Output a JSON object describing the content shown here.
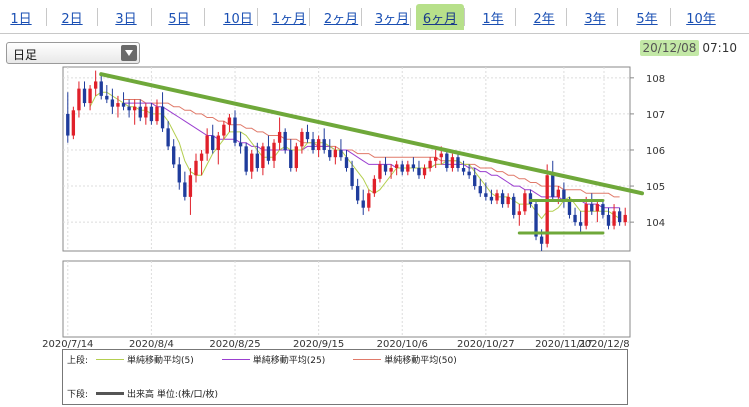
{
  "tabs": [
    {
      "label": "1日",
      "active": false
    },
    {
      "label": "2日",
      "active": false
    },
    {
      "label": "3日",
      "active": false
    },
    {
      "label": "5日",
      "active": false
    },
    {
      "label": "10日",
      "active": false
    },
    {
      "label": "1ヶ月",
      "active": false
    },
    {
      "label": "2ヶ月",
      "active": false
    },
    {
      "label": "3ヶ月",
      "active": false
    },
    {
      "label": "6ヶ月",
      "active": true
    },
    {
      "label": "1年",
      "active": false
    },
    {
      "label": "2年",
      "active": false
    },
    {
      "label": "3年",
      "active": false
    },
    {
      "label": "5年",
      "active": false
    },
    {
      "label": "10年",
      "active": false
    }
  ],
  "interval_select": {
    "value": "日足"
  },
  "timestamp": {
    "date": "20/12/08",
    "time": "07:10"
  },
  "legend": {
    "upper_label": "上段:",
    "lower_label": "下段:",
    "ma5": "単純移動平均(5)",
    "ma25": "単純移動平均(25)",
    "ma50": "単純移動平均(50)",
    "volume": "出来高 単位:(株/口/枚)"
  },
  "colors": {
    "up": "#e0202a",
    "down": "#1f3c9c",
    "ma5": "#b4cf50",
    "ma25": "#9b3fd0",
    "ma50": "#e07a6a",
    "trendline": "#6fa83a",
    "active_tab": "#b7e08a",
    "timestamp_bg": "#c3e8a6"
  },
  "chart_data": {
    "type": "candlestick",
    "ylim": [
      103.2,
      108.3
    ],
    "y_ticks": [
      104,
      105,
      106,
      107,
      108
    ],
    "x_ticks": [
      "2020/7/14",
      "2020/8/4",
      "2020/8/25",
      "2020/9/15",
      "2020/10/6",
      "2020/10/27",
      "2020/11/17",
      "2020/12/8"
    ],
    "grid": true,
    "candles": [
      [
        107.0,
        107.6,
        106.2,
        106.4
      ],
      [
        106.4,
        107.2,
        106.3,
        107.1
      ],
      [
        107.1,
        107.9,
        106.9,
        107.7
      ],
      [
        107.7,
        107.9,
        107.2,
        107.3
      ],
      [
        107.3,
        107.8,
        107.1,
        107.7
      ],
      [
        107.7,
        108.2,
        107.5,
        107.9
      ],
      [
        107.9,
        108.1,
        107.4,
        107.5
      ],
      [
        107.5,
        107.8,
        107.3,
        107.4
      ],
      [
        107.4,
        107.7,
        107.0,
        107.2
      ],
      [
        107.2,
        107.5,
        106.9,
        107.3
      ],
      [
        107.3,
        107.6,
        107.1,
        107.2
      ],
      [
        107.2,
        107.4,
        106.9,
        107.1
      ],
      [
        107.1,
        107.4,
        106.7,
        107.2
      ],
      [
        107.2,
        107.4,
        106.8,
        106.9
      ],
      [
        106.9,
        107.3,
        106.7,
        107.2
      ],
      [
        107.2,
        107.3,
        106.7,
        106.8
      ],
      [
        106.8,
        107.4,
        106.7,
        107.2
      ],
      [
        107.2,
        107.6,
        106.5,
        106.6
      ],
      [
        106.6,
        106.8,
        106.0,
        106.1
      ],
      [
        106.1,
        106.3,
        105.5,
        105.6
      ],
      [
        105.6,
        105.8,
        104.9,
        105.1
      ],
      [
        105.1,
        105.4,
        104.6,
        104.7
      ],
      [
        104.7,
        105.5,
        104.2,
        105.3
      ],
      [
        105.3,
        105.9,
        105.1,
        105.7
      ],
      [
        105.7,
        106.0,
        105.3,
        105.9
      ],
      [
        105.9,
        106.6,
        105.7,
        106.4
      ],
      [
        106.4,
        106.7,
        105.9,
        106.0
      ],
      [
        106.0,
        106.5,
        105.6,
        106.4
      ],
      [
        106.4,
        106.8,
        106.3,
        106.7
      ],
      [
        106.7,
        107.0,
        106.5,
        106.9
      ],
      [
        106.9,
        107.1,
        106.1,
        106.2
      ],
      [
        106.2,
        106.5,
        105.9,
        106.1
      ],
      [
        106.1,
        106.2,
        105.3,
        105.4
      ],
      [
        105.4,
        106.0,
        105.2,
        105.9
      ],
      [
        105.9,
        106.2,
        105.4,
        105.5
      ],
      [
        105.5,
        106.2,
        105.3,
        106.1
      ],
      [
        106.1,
        106.4,
        105.6,
        105.7
      ],
      [
        105.7,
        106.3,
        105.5,
        106.2
      ],
      [
        106.2,
        106.9,
        106.0,
        106.5
      ],
      [
        106.5,
        106.6,
        105.9,
        106.0
      ],
      [
        106.0,
        106.3,
        105.4,
        105.5
      ],
      [
        105.5,
        106.2,
        105.4,
        106.1
      ],
      [
        106.1,
        106.6,
        105.9,
        106.5
      ],
      [
        106.5,
        106.7,
        106.2,
        106.3
      ],
      [
        106.3,
        106.5,
        105.9,
        106.0
      ],
      [
        106.0,
        106.4,
        105.8,
        106.3
      ],
      [
        106.3,
        106.6,
        105.9,
        106.0
      ],
      [
        106.0,
        106.3,
        105.7,
        105.8
      ],
      [
        105.8,
        106.1,
        105.6,
        106.0
      ],
      [
        106.0,
        106.3,
        105.7,
        105.8
      ],
      [
        105.8,
        106.0,
        105.4,
        105.5
      ],
      [
        105.5,
        105.7,
        104.9,
        105.0
      ],
      [
        105.0,
        105.2,
        104.5,
        104.6
      ],
      [
        104.6,
        104.9,
        104.2,
        104.4
      ],
      [
        104.4,
        104.9,
        104.3,
        104.8
      ],
      [
        104.8,
        105.3,
        104.7,
        105.2
      ],
      [
        105.2,
        105.7,
        105.1,
        105.6
      ],
      [
        105.6,
        105.8,
        105.3,
        105.4
      ],
      [
        105.4,
        105.6,
        105.2,
        105.5
      ],
      [
        105.5,
        105.7,
        105.3,
        105.6
      ],
      [
        105.6,
        105.7,
        105.3,
        105.4
      ],
      [
        105.4,
        105.7,
        105.3,
        105.6
      ],
      [
        105.6,
        105.8,
        105.4,
        105.5
      ],
      [
        105.5,
        105.7,
        105.2,
        105.3
      ],
      [
        105.3,
        105.6,
        105.2,
        105.5
      ],
      [
        105.5,
        105.8,
        105.4,
        105.7
      ],
      [
        105.7,
        106.0,
        105.5,
        105.8
      ],
      [
        105.8,
        106.1,
        105.6,
        105.9
      ],
      [
        105.9,
        106.0,
        105.4,
        105.5
      ],
      [
        105.5,
        105.9,
        105.4,
        105.8
      ],
      [
        105.8,
        105.9,
        105.4,
        105.5
      ],
      [
        105.5,
        105.7,
        105.3,
        105.4
      ],
      [
        105.4,
        105.6,
        105.2,
        105.3
      ],
      [
        105.3,
        105.5,
        104.9,
        105.0
      ],
      [
        105.0,
        105.2,
        104.7,
        104.8
      ],
      [
        104.8,
        105.1,
        104.6,
        104.7
      ],
      [
        104.7,
        104.9,
        104.5,
        104.6
      ],
      [
        104.6,
        104.9,
        104.5,
        104.8
      ],
      [
        104.8,
        104.9,
        104.4,
        104.5
      ],
      [
        104.5,
        104.8,
        104.4,
        104.7
      ],
      [
        104.7,
        104.8,
        104.1,
        104.2
      ],
      [
        104.2,
        104.5,
        103.9,
        104.3
      ],
      [
        104.3,
        104.9,
        104.2,
        104.8
      ],
      [
        104.8,
        104.9,
        104.4,
        104.5
      ],
      [
        104.5,
        104.6,
        103.5,
        103.6
      ],
      [
        103.6,
        103.8,
        103.2,
        103.4
      ],
      [
        103.4,
        105.6,
        103.3,
        105.3
      ],
      [
        105.3,
        105.7,
        104.6,
        104.7
      ],
      [
        104.7,
        105.0,
        104.5,
        104.9
      ],
      [
        104.9,
        105.1,
        104.4,
        104.6
      ],
      [
        104.6,
        104.7,
        104.1,
        104.2
      ],
      [
        104.2,
        104.4,
        103.9,
        104.0
      ],
      [
        104.0,
        104.3,
        103.7,
        103.9
      ],
      [
        103.9,
        104.7,
        103.8,
        104.5
      ],
      [
        104.5,
        104.8,
        104.2,
        104.3
      ],
      [
        104.3,
        104.6,
        104.0,
        104.5
      ],
      [
        104.5,
        104.6,
        104.1,
        104.2
      ],
      [
        104.2,
        104.4,
        103.8,
        103.9
      ],
      [
        103.9,
        104.5,
        103.8,
        104.3
      ],
      [
        104.3,
        104.4,
        103.9,
        104.0
      ],
      [
        104.0,
        104.4,
        103.9,
        104.2
      ]
    ],
    "ma5": [
      null,
      null,
      null,
      null,
      107.2,
      107.5,
      107.6,
      107.6,
      107.5,
      107.4,
      107.3,
      107.2,
      107.2,
      107.1,
      107.1,
      107.0,
      107.0,
      107.0,
      106.8,
      106.5,
      106.2,
      105.7,
      105.4,
      105.3,
      105.3,
      105.6,
      105.9,
      106.1,
      106.3,
      106.5,
      106.5,
      106.5,
      106.4,
      106.2,
      106.0,
      105.8,
      105.8,
      105.8,
      106.0,
      106.1,
      106.0,
      106.0,
      106.0,
      106.2,
      106.2,
      106.2,
      106.2,
      106.1,
      106.0,
      106.0,
      105.8,
      105.6,
      105.4,
      105.2,
      104.9,
      104.8,
      104.9,
      105.1,
      105.3,
      105.5,
      105.5,
      105.5,
      105.5,
      105.5,
      105.5,
      105.5,
      105.6,
      105.6,
      105.7,
      105.7,
      105.7,
      105.6,
      105.6,
      105.4,
      105.2,
      105.0,
      104.8,
      104.7,
      104.7,
      104.7,
      104.6,
      104.5,
      104.5,
      104.5,
      104.3,
      104.1,
      104.3,
      104.3,
      104.4,
      104.6,
      104.7,
      104.5,
      104.3,
      104.3,
      104.3,
      104.3,
      104.3,
      104.3,
      104.2,
      104.1
    ],
    "ma25": [
      null,
      null,
      null,
      null,
      null,
      null,
      null,
      null,
      null,
      null,
      107.3,
      107.3,
      107.3,
      107.3,
      107.3,
      107.3,
      107.2,
      107.2,
      107.1,
      107.0,
      106.9,
      106.8,
      106.7,
      106.6,
      106.5,
      106.4,
      106.4,
      106.3,
      106.3,
      106.3,
      106.3,
      106.2,
      106.2,
      106.1,
      106.1,
      106.0,
      106.0,
      106.0,
      106.0,
      106.0,
      106.0,
      106.0,
      106.0,
      106.1,
      106.1,
      106.1,
      106.1,
      106.1,
      106.0,
      106.0,
      106.0,
      105.9,
      105.8,
      105.7,
      105.6,
      105.6,
      105.6,
      105.6,
      105.6,
      105.5,
      105.5,
      105.5,
      105.5,
      105.5,
      105.5,
      105.5,
      105.6,
      105.6,
      105.6,
      105.6,
      105.6,
      105.6,
      105.5,
      105.5,
      105.4,
      105.4,
      105.3,
      105.3,
      105.2,
      105.1,
      105.0,
      105.0,
      104.9,
      104.9,
      104.8,
      104.7,
      104.7,
      104.7,
      104.7,
      104.6,
      104.6,
      104.6,
      104.6,
      104.5,
      104.5,
      104.5,
      104.4,
      104.4,
      104.4,
      104.4
    ],
    "ma50": [
      null,
      null,
      null,
      null,
      null,
      null,
      null,
      null,
      null,
      null,
      107.4,
      107.4,
      107.4,
      107.4,
      107.3,
      107.3,
      107.3,
      107.3,
      107.3,
      107.2,
      107.2,
      107.1,
      107.1,
      107.0,
      107.0,
      106.9,
      106.9,
      106.8,
      106.8,
      106.7,
      106.7,
      106.7,
      106.6,
      106.6,
      106.5,
      106.5,
      106.4,
      106.4,
      106.4,
      106.3,
      106.3,
      106.3,
      106.2,
      106.2,
      106.2,
      106.1,
      106.1,
      106.1,
      106.1,
      106.0,
      106.0,
      106.0,
      105.9,
      105.9,
      105.9,
      105.8,
      105.8,
      105.8,
      105.8,
      105.8,
      105.8,
      105.8,
      105.8,
      105.8,
      105.8,
      105.8,
      105.8,
      105.7,
      105.7,
      105.7,
      105.7,
      105.6,
      105.6,
      105.6,
      105.5,
      105.5,
      105.5,
      105.4,
      105.4,
      105.3,
      105.3,
      105.2,
      105.2,
      105.1,
      105.1,
      105.0,
      105.0,
      105.0,
      105.0,
      104.9,
      104.9,
      104.9,
      104.9,
      104.8,
      104.8,
      104.8,
      104.8,
      104.8,
      104.7,
      104.7
    ],
    "trendlines": [
      {
        "from": [
          6,
          108.1
        ],
        "to": [
          103,
          104.8
        ]
      },
      {
        "from": [
          83,
          104.6
        ],
        "to": [
          96,
          104.6
        ]
      },
      {
        "from": [
          81,
          103.7
        ],
        "to": [
          96,
          103.7
        ]
      }
    ]
  }
}
